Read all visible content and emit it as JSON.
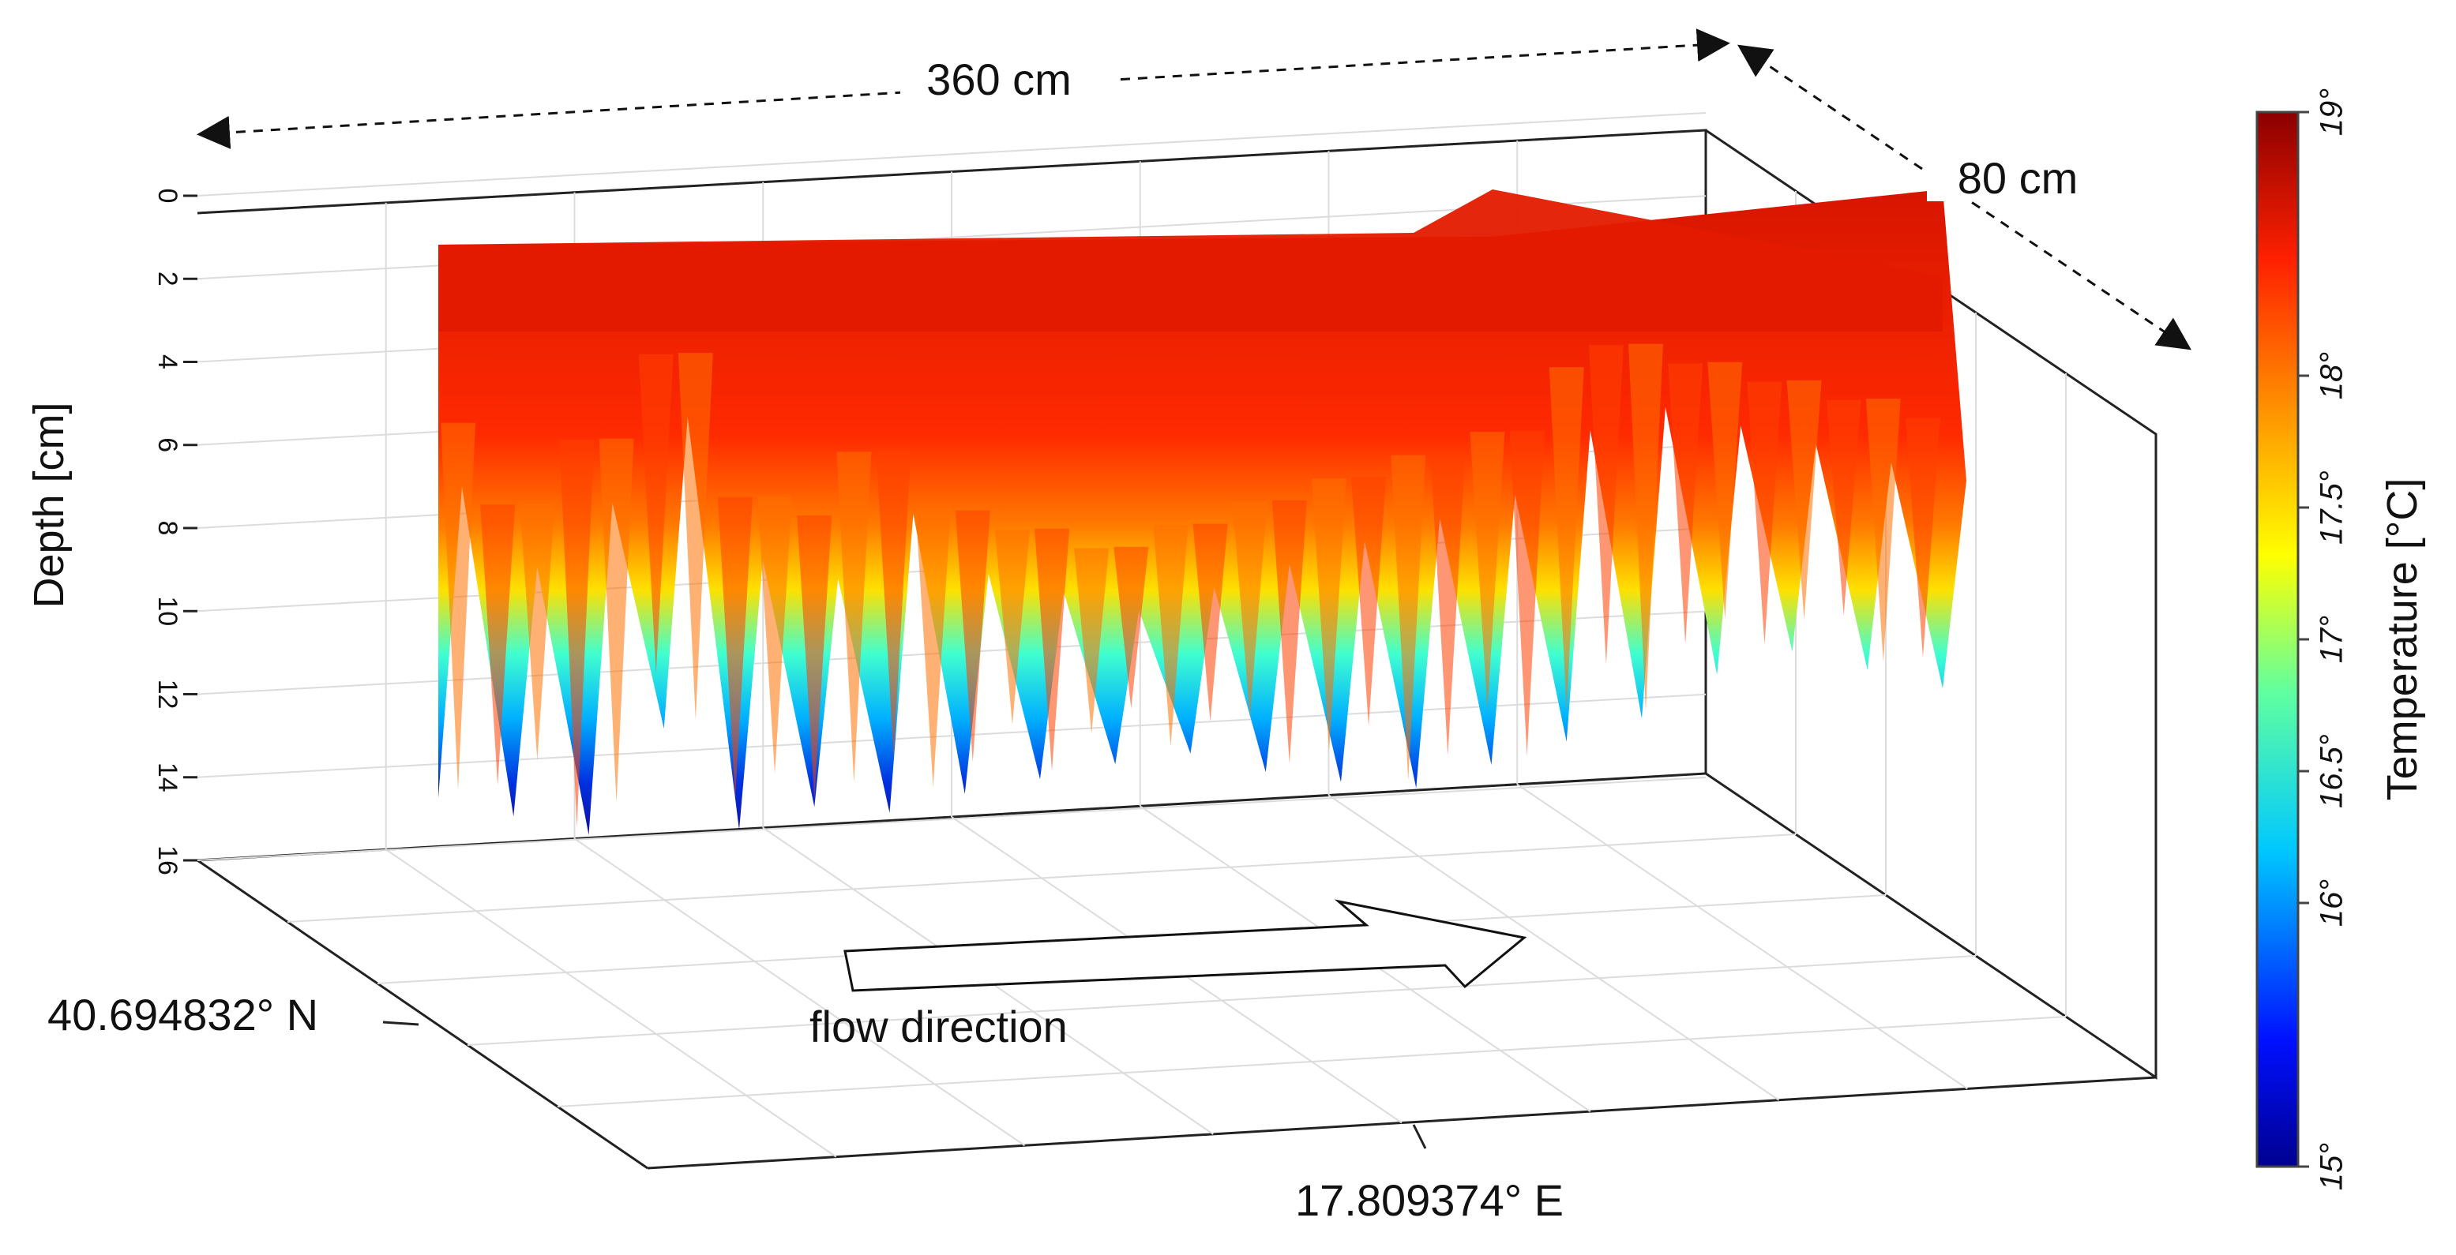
{
  "chart_data": {
    "type": "heatmap",
    "title": "",
    "zlabel": "Depth [cm]",
    "zlim": [
      0,
      16
    ],
    "z_ticks": [
      "0",
      "2",
      "4",
      "6",
      "8",
      "10",
      "12",
      "14",
      "16"
    ],
    "x_extent_label": "360 cm",
    "y_extent_label": "80 cm",
    "latitude_label": "40.694832° N",
    "longitude_label": "17.809374° E",
    "annotation": "flow direction",
    "colorbar": {
      "label": "Temperature [°C]",
      "range": [
        15,
        19
      ],
      "ticks": [
        "15°",
        "16°",
        "16.5°",
        "17°",
        "17.5°",
        "18°",
        "19°"
      ],
      "colormap": "jet"
    },
    "grid": true,
    "surface_profile": {
      "along_x_fraction": [
        0.0,
        0.05,
        0.1,
        0.15,
        0.2,
        0.25,
        0.3,
        0.35,
        0.4,
        0.45,
        0.5,
        0.55,
        0.6,
        0.65,
        0.7,
        0.75,
        0.8,
        0.85,
        0.9,
        0.95,
        1.0
      ],
      "bottom_depth_cm": [
        14.5,
        15.0,
        15.5,
        13.0,
        15.5,
        15.0,
        15.2,
        14.8,
        14.5,
        14.2,
        14.0,
        14.5,
        14.8,
        15.0,
        14.5,
        14.0,
        13.5,
        12.5,
        12.0,
        12.5,
        13.0
      ],
      "warm_layer_depth_cm": [
        7.0,
        9.0,
        7.5,
        5.5,
        9.0,
        9.5,
        8.0,
        9.5,
        10.0,
        10.5,
        10.0,
        9.5,
        9.0,
        8.5,
        8.0,
        6.5,
        6.0,
        6.5,
        7.0,
        7.5,
        8.0
      ]
    }
  }
}
